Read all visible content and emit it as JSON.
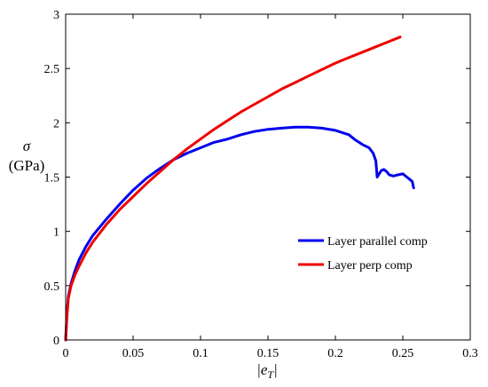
{
  "chart_data": {
    "type": "line",
    "title": "",
    "xlabel": "|e_T|",
    "ylabel": "σ (GPa)",
    "ylabel_line1": "σ",
    "ylabel_line2": "(GPa)",
    "xlim": [
      0,
      0.3
    ],
    "ylim": [
      0,
      3
    ],
    "x_ticks": [
      "0",
      "0.05",
      "0.1",
      "0.15",
      "0.2",
      "0.25",
      "0.3"
    ],
    "y_ticks": [
      "0",
      "0.5",
      "1",
      "1.5",
      "2",
      "2.5",
      "3"
    ],
    "grid": false,
    "legend_position": "right",
    "series": [
      {
        "name": "Layer parallel comp",
        "color": "#0000ee",
        "x": [
          0,
          0.001,
          0.002,
          0.004,
          0.007,
          0.01,
          0.015,
          0.02,
          0.03,
          0.04,
          0.05,
          0.06,
          0.07,
          0.08,
          0.09,
          0.1,
          0.11,
          0.12,
          0.13,
          0.14,
          0.15,
          0.16,
          0.17,
          0.18,
          0.19,
          0.2,
          0.21,
          0.215,
          0.22,
          0.225,
          0.228,
          0.23,
          0.231,
          0.232,
          0.234,
          0.236,
          0.238,
          0.24,
          0.243,
          0.246,
          0.25,
          0.253,
          0.255,
          0.257,
          0.258
        ],
        "y": [
          0,
          0.25,
          0.4,
          0.52,
          0.64,
          0.74,
          0.86,
          0.96,
          1.11,
          1.25,
          1.38,
          1.49,
          1.58,
          1.66,
          1.72,
          1.77,
          1.82,
          1.85,
          1.89,
          1.92,
          1.94,
          1.95,
          1.96,
          1.96,
          1.95,
          1.93,
          1.89,
          1.84,
          1.8,
          1.77,
          1.72,
          1.65,
          1.5,
          1.52,
          1.56,
          1.57,
          1.55,
          1.52,
          1.51,
          1.52,
          1.53,
          1.5,
          1.48,
          1.46,
          1.4
        ]
      },
      {
        "name": "Layer perp comp",
        "color": "#ee0000",
        "x": [
          0,
          0.001,
          0.002,
          0.004,
          0.007,
          0.01,
          0.015,
          0.02,
          0.03,
          0.04,
          0.05,
          0.06,
          0.07,
          0.08,
          0.09,
          0.1,
          0.11,
          0.12,
          0.13,
          0.14,
          0.15,
          0.16,
          0.17,
          0.18,
          0.19,
          0.2,
          0.21,
          0.22,
          0.23,
          0.24,
          0.248
        ],
        "y": [
          0,
          0.22,
          0.38,
          0.5,
          0.6,
          0.68,
          0.8,
          0.9,
          1.06,
          1.2,
          1.32,
          1.44,
          1.55,
          1.66,
          1.76,
          1.85,
          1.94,
          2.02,
          2.1,
          2.17,
          2.24,
          2.31,
          2.37,
          2.43,
          2.49,
          2.55,
          2.6,
          2.65,
          2.7,
          2.75,
          2.79
        ]
      }
    ]
  }
}
